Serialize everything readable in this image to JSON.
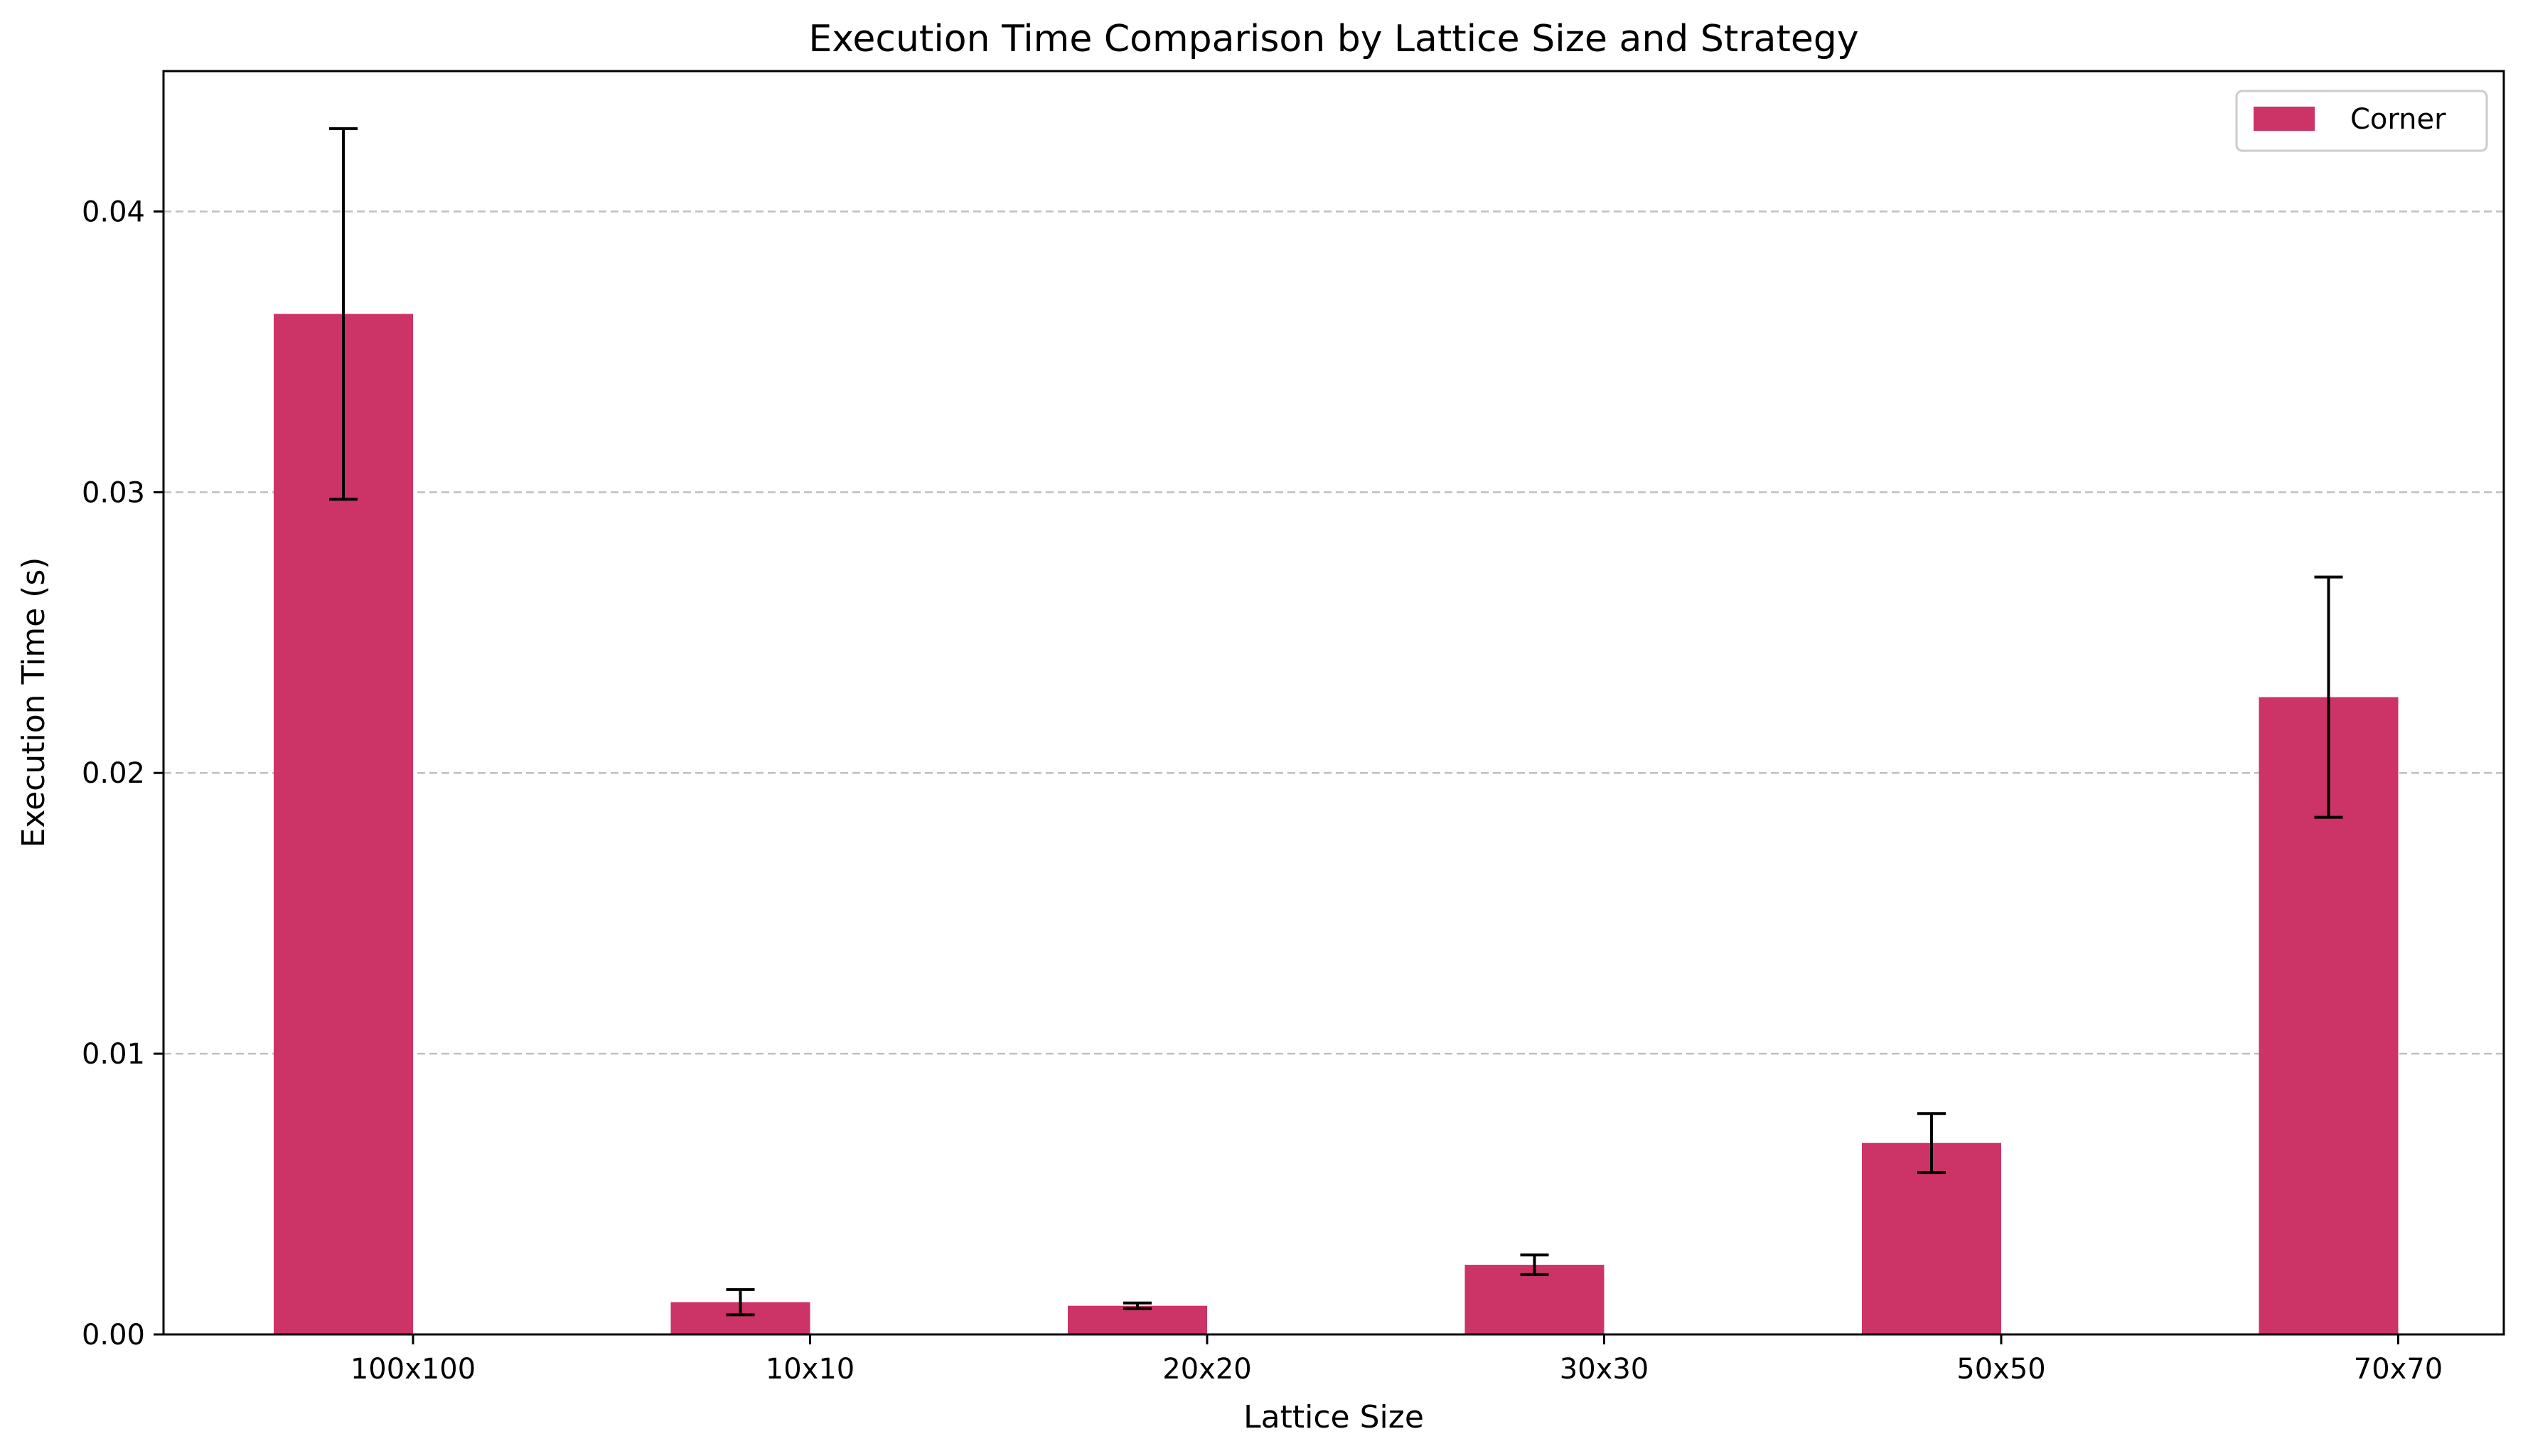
{
  "chart_data": {
    "type": "bar",
    "title": "Execution Time Comparison by Lattice Size and Strategy",
    "xlabel": "Lattice Size",
    "ylabel": "Execution Time (s)",
    "categories": [
      "100x100",
      "10x10",
      "20x20",
      "30x30",
      "50x50",
      "70x70"
    ],
    "series": [
      {
        "name": "Corner",
        "color": "#cc3366",
        "values": [
          0.03635,
          0.00115,
          0.00102,
          0.00248,
          0.00682,
          0.0227
        ],
        "errors": [
          0.0066,
          0.00045,
          0.0001,
          0.00035,
          0.00105,
          0.00428
        ]
      }
    ],
    "ylim": [
      0,
      0.045
    ],
    "yticks": [
      0.0,
      0.01,
      0.02,
      0.03,
      0.04
    ],
    "ytick_labels": [
      "0.00",
      "0.01",
      "0.02",
      "0.03",
      "0.04"
    ],
    "grid": "y-dashed",
    "legend_position": "top-right"
  }
}
